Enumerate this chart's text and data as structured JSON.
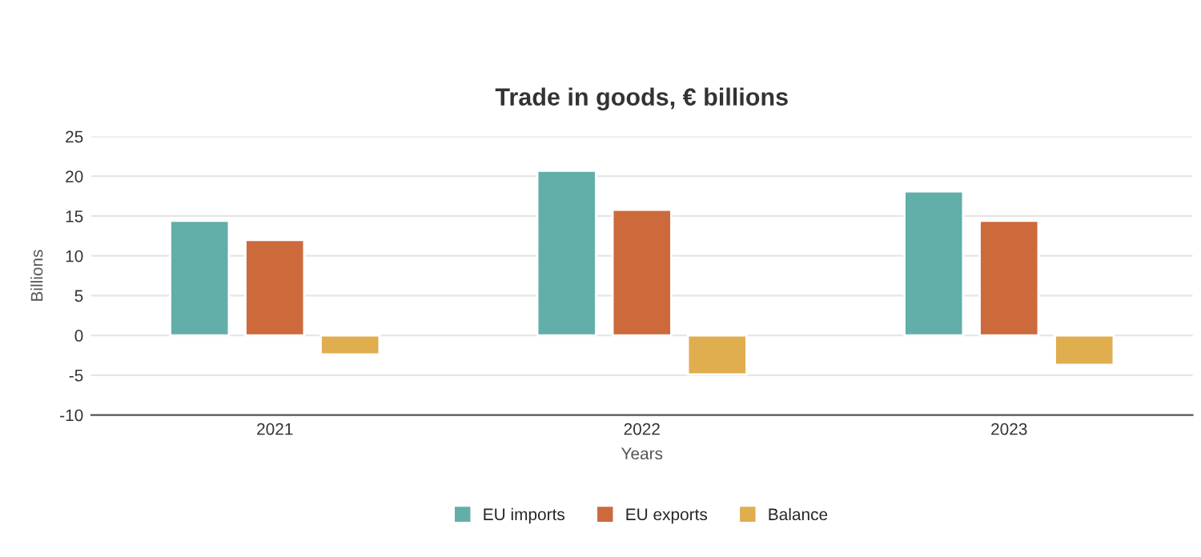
{
  "chart_data": {
    "type": "bar",
    "title": "Trade in goods, € billions",
    "xlabel": "Years",
    "ylabel": "Billions",
    "categories": [
      "2021",
      "2022",
      "2023"
    ],
    "series": [
      {
        "name": "EU imports",
        "color": "#62aea9",
        "values": [
          14.4,
          20.7,
          18.1
        ]
      },
      {
        "name": "EU exports",
        "color": "#cc6a3c",
        "values": [
          12.0,
          15.8,
          14.4
        ]
      },
      {
        "name": "Balance",
        "color": "#e0ad4f",
        "values": [
          -2.4,
          -4.9,
          -3.7
        ]
      }
    ],
    "ylim": [
      -10,
      25
    ],
    "yticks": [
      -10,
      -5,
      0,
      5,
      10,
      15,
      20,
      25
    ],
    "grid": "y",
    "legend": "bottom"
  }
}
